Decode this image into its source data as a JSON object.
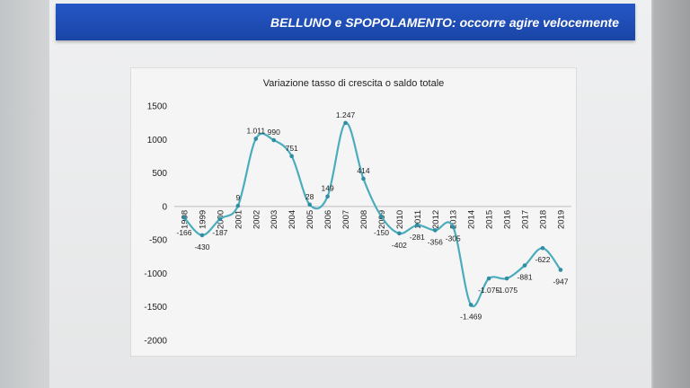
{
  "slide": {
    "title": "BELLUNO e SPOPOLAMENTO: occorre agire velocemente"
  },
  "chart_data": {
    "type": "line",
    "title": "Variazione tasso di crescita o saldo totale",
    "categories": [
      "1998",
      "1999",
      "2000",
      "2001",
      "2002",
      "2003",
      "2004",
      "2005",
      "2006",
      "2007",
      "2008",
      "2009",
      "2010",
      "2011",
      "2012",
      "2013",
      "2014",
      "2015",
      "2016",
      "2017",
      "2018",
      "2019"
    ],
    "values": [
      -166,
      -430,
      -187,
      9,
      1011,
      990,
      751,
      28,
      149,
      1247,
      414,
      -150,
      -402,
      -281,
      -356,
      -305,
      -1469,
      -1075,
      -1075,
      -881,
      -622,
      -947
    ],
    "data_labels": [
      "-166",
      "-430",
      "-187",
      "9",
      "1.011",
      "990",
      "751",
      "28",
      "149",
      "1.247",
      "414",
      "-150",
      "-402",
      "-281",
      "-356",
      "-305",
      "-1.469",
      "-1.075",
      "-1.075",
      "-881",
      "-622",
      "-947"
    ],
    "ylim": [
      -2000,
      1500
    ],
    "ytick_labels": [
      "1500",
      "1000",
      "500",
      "0",
      "-500",
      "-1000",
      "-1500",
      "-2000"
    ],
    "grid": false,
    "legend": "none",
    "smooth": true,
    "line_color": "#4bacbd",
    "marker_color": "#2f8ea2"
  }
}
